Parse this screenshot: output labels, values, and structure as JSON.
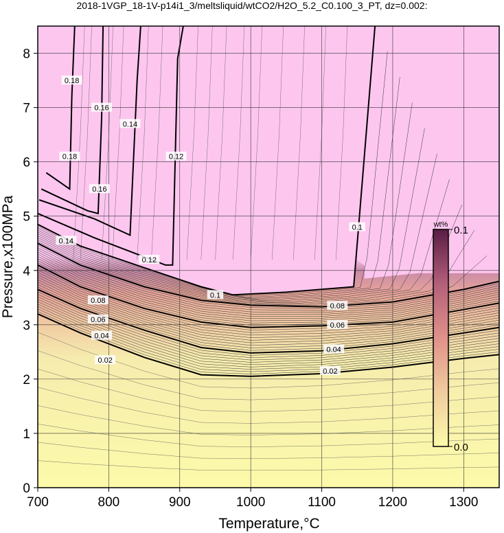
{
  "chart_data": {
    "type": "heatmap",
    "title": "2018-1VGP_18-1V-p14i1_3/meltsliquid/wtCO2/H2O_5.2_C0.100_3_PT, dz=0.002:",
    "xlabel": "Temperature,°C",
    "ylabel": "Pressure,x100MPa",
    "xlim": [
      700,
      1350
    ],
    "ylim": [
      0,
      8.5
    ],
    "x_ticks": [
      700,
      800,
      900,
      1000,
      1100,
      1200,
      1300
    ],
    "y_ticks": [
      0,
      1,
      2,
      3,
      4,
      5,
      6,
      7,
      8
    ],
    "grid": true,
    "colorbar": {
      "unit": "wt%",
      "min": 0.0,
      "max": 0.1,
      "min_label": "0.0",
      "max_label": "0.1",
      "colors": [
        "#fcfaaa",
        "#f0cc9e",
        "#e0918a",
        "#b35f7a",
        "#5a1c44"
      ],
      "placement": "right-inside"
    },
    "major_contours": [
      {
        "label": "0.02",
        "points": [
          [
            700,
            3.2
          ],
          [
            760,
            2.85
          ],
          [
            850,
            2.4
          ],
          [
            930,
            2.08
          ],
          [
            1000,
            2.05
          ],
          [
            1100,
            2.1
          ],
          [
            1200,
            2.22
          ],
          [
            1300,
            2.38
          ],
          [
            1350,
            2.45
          ]
        ]
      },
      {
        "label": "0.04",
        "points": [
          [
            700,
            3.65
          ],
          [
            760,
            3.3
          ],
          [
            850,
            2.9
          ],
          [
            930,
            2.58
          ],
          [
            1000,
            2.48
          ],
          [
            1100,
            2.52
          ],
          [
            1200,
            2.65
          ],
          [
            1300,
            2.85
          ],
          [
            1350,
            2.95
          ]
        ]
      },
      {
        "label": "0.06",
        "points": [
          [
            700,
            4.1
          ],
          [
            760,
            3.7
          ],
          [
            850,
            3.3
          ],
          [
            930,
            3.05
          ],
          [
            1000,
            2.95
          ],
          [
            1100,
            2.98
          ],
          [
            1200,
            3.05
          ],
          [
            1300,
            3.28
          ],
          [
            1350,
            3.4
          ]
        ]
      },
      {
        "label": "0.08",
        "points": [
          [
            700,
            4.5
          ],
          [
            760,
            4.1
          ],
          [
            850,
            3.7
          ],
          [
            930,
            3.45
          ],
          [
            1000,
            3.36
          ],
          [
            1100,
            3.33
          ],
          [
            1200,
            3.42
          ],
          [
            1300,
            3.65
          ],
          [
            1350,
            3.8
          ]
        ]
      },
      {
        "label": "0.1",
        "points": [
          [
            700,
            4.85
          ],
          [
            760,
            4.45
          ],
          [
            850,
            4.05
          ],
          [
            930,
            3.7
          ],
          [
            975,
            3.55
          ],
          [
            1050,
            3.6
          ],
          [
            1145,
            3.7
          ],
          [
            1175,
            8.5
          ]
        ]
      },
      {
        "label": "0.12",
        "points": [
          [
            700,
            5.05
          ],
          [
            780,
            4.6
          ],
          [
            880,
            4.1
          ],
          [
            890,
            4.1
          ],
          [
            897,
            7.9
          ],
          [
            905,
            8.5
          ]
        ]
      },
      {
        "label": "0.14",
        "points": [
          [
            702,
            5.3
          ],
          [
            780,
            4.95
          ],
          [
            830,
            4.65
          ],
          [
            840,
            7.5
          ],
          [
            845,
            8.5
          ]
        ]
      },
      {
        "label": "0.16",
        "points": [
          [
            705,
            5.5
          ],
          [
            770,
            5.1
          ],
          [
            785,
            5.05
          ],
          [
            790,
            6.8
          ],
          [
            792,
            8.5
          ]
        ]
      },
      {
        "label": "0.18",
        "points": [
          [
            712,
            5.8
          ],
          [
            745,
            5.5
          ],
          [
            748,
            7.2
          ],
          [
            752,
            8.5
          ]
        ]
      }
    ],
    "contour_labels": [
      {
        "text": "0.02",
        "x": 1112,
        "y": 2.15
      },
      {
        "text": "0.02",
        "x": 795,
        "y": 2.35
      },
      {
        "text": "0.04",
        "x": 1117,
        "y": 2.55
      },
      {
        "text": "0.04",
        "x": 790,
        "y": 2.8
      },
      {
        "text": "0.06",
        "x": 1122,
        "y": 3.0
      },
      {
        "text": "0.06",
        "x": 785,
        "y": 3.1
      },
      {
        "text": "0.08",
        "x": 1122,
        "y": 3.35
      },
      {
        "text": "0.08",
        "x": 785,
        "y": 3.45
      },
      {
        "text": "0.1",
        "x": 950,
        "y": 3.55
      },
      {
        "text": "0.1",
        "x": 1150,
        "y": 4.8
      },
      {
        "text": "0.12",
        "x": 857,
        "y": 4.2
      },
      {
        "text": "0.12",
        "x": 895,
        "y": 6.1
      },
      {
        "text": "0.14",
        "x": 740,
        "y": 4.55
      },
      {
        "text": "0.14",
        "x": 830,
        "y": 6.7
      },
      {
        "text": "0.16",
        "x": 787,
        "y": 5.5
      },
      {
        "text": "0.16",
        "x": 790,
        "y": 7.0
      },
      {
        "text": "0.18",
        "x": 745,
        "y": 6.1
      },
      {
        "text": "0.18",
        "x": 748,
        "y": 7.5
      }
    ]
  }
}
